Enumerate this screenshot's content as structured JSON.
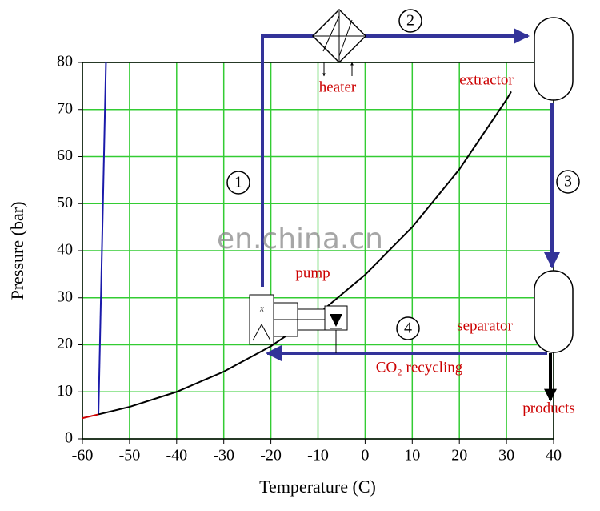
{
  "chart_data": {
    "type": "line",
    "x_label": "Temperature (C)",
    "y_label": "Pressure (bar)",
    "xlim": [
      -60,
      40
    ],
    "ylim": [
      0,
      80
    ],
    "xticks": [
      -60,
      -50,
      -40,
      -30,
      -20,
      -10,
      0,
      10,
      20,
      30,
      40
    ],
    "yticks": [
      0,
      10,
      20,
      30,
      40,
      50,
      60,
      70,
      80
    ],
    "grid": true,
    "grid_color": "#33cc33",
    "series": [
      {
        "color": "#cc0000",
        "x": [
          -60,
          -56.6
        ],
        "values": [
          4.4,
          5.2
        ]
      },
      {
        "color": "#1a1aaa",
        "x": [
          -56.6,
          -55
        ],
        "values": [
          5.2,
          80
        ]
      },
      {
        "color": "#000000",
        "x": [
          -56.6,
          -50,
          -40,
          -30,
          -20,
          -10,
          0,
          10,
          20,
          30,
          31
        ],
        "values": [
          5.2,
          6.8,
          10,
          14.3,
          19.7,
          26.5,
          34.9,
          45,
          57.3,
          72.1,
          73.8
        ]
      }
    ],
    "annotations": [
      "heater",
      "extractor",
      "pump",
      "separator",
      "CO₂ recycling",
      "products"
    ],
    "steps": [
      "1",
      "2",
      "3",
      "4"
    ],
    "watermark": "en.china.cn"
  }
}
